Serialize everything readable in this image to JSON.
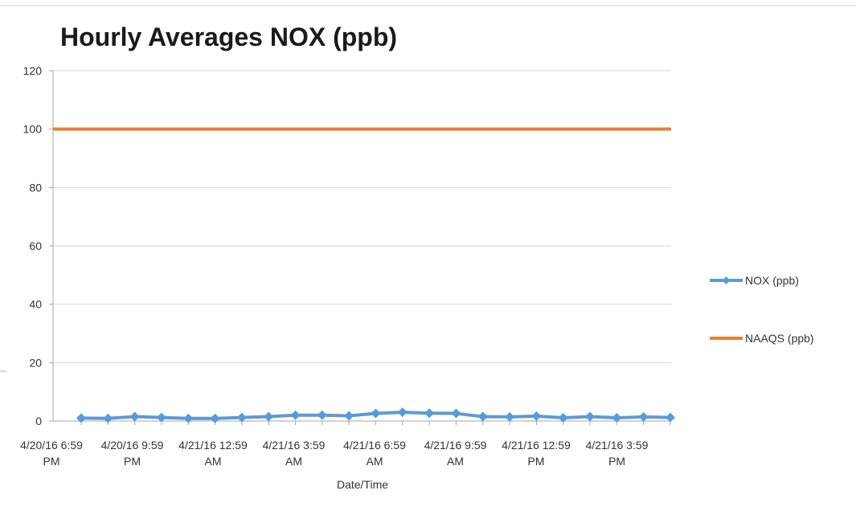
{
  "chart_data": {
    "type": "line",
    "title": "Hourly Averages NOX (ppb)",
    "xlabel": "Date/Time",
    "ylabel": "",
    "ylim": [
      0,
      120
    ],
    "yticks": [
      0,
      20,
      40,
      60,
      80,
      100,
      120
    ],
    "grid": "horizontal",
    "legend_position": "right",
    "x_tick_labels": [
      [
        "4/20/16 6:59",
        "PM"
      ],
      [
        "4/20/16 9:59",
        "PM"
      ],
      [
        "4/21/16 12:59",
        "AM"
      ],
      [
        "4/21/16 3:59",
        "AM"
      ],
      [
        "4/21/16 6:59",
        "AM"
      ],
      [
        "4/21/16 9:59",
        "AM"
      ],
      [
        "4/21/16 12:59",
        "PM"
      ],
      [
        "4/21/16 3:59",
        "PM"
      ]
    ],
    "x": [
      "4/20/16 6:59 PM",
      "4/20/16 7:59 PM",
      "4/20/16 8:59 PM",
      "4/20/16 9:59 PM",
      "4/20/16 10:59 PM",
      "4/20/16 11:59 PM",
      "4/21/16 12:59 AM",
      "4/21/16 1:59 AM",
      "4/21/16 2:59 AM",
      "4/21/16 3:59 AM",
      "4/21/16 4:59 AM",
      "4/21/16 5:59 AM",
      "4/21/16 6:59 AM",
      "4/21/16 7:59 AM",
      "4/21/16 8:59 AM",
      "4/21/16 9:59 AM",
      "4/21/16 10:59 AM",
      "4/21/16 11:59 AM",
      "4/21/16 12:59 PM",
      "4/21/16 1:59 PM",
      "4/21/16 2:59 PM",
      "4/21/16 3:59 PM",
      "4/21/16 4:59 PM"
    ],
    "series": [
      {
        "name": "NOX (ppb)",
        "color": "#5b9bd5",
        "marker": "diamond",
        "values": [
          1.0,
          0.9,
          1.5,
          1.2,
          0.9,
          0.9,
          1.2,
          1.5,
          2.0,
          2.0,
          1.8,
          2.6,
          3.0,
          2.7,
          2.6,
          1.5,
          1.4,
          1.7,
          1.1,
          1.5,
          1.1,
          1.4,
          1.2
        ]
      },
      {
        "name": "NAAQS (ppb)",
        "color": "#ed7d31",
        "marker": "none",
        "values": [
          100,
          100,
          100,
          100,
          100,
          100,
          100,
          100,
          100,
          100,
          100,
          100,
          100,
          100,
          100,
          100,
          100,
          100,
          100,
          100,
          100,
          100,
          100
        ]
      }
    ]
  }
}
